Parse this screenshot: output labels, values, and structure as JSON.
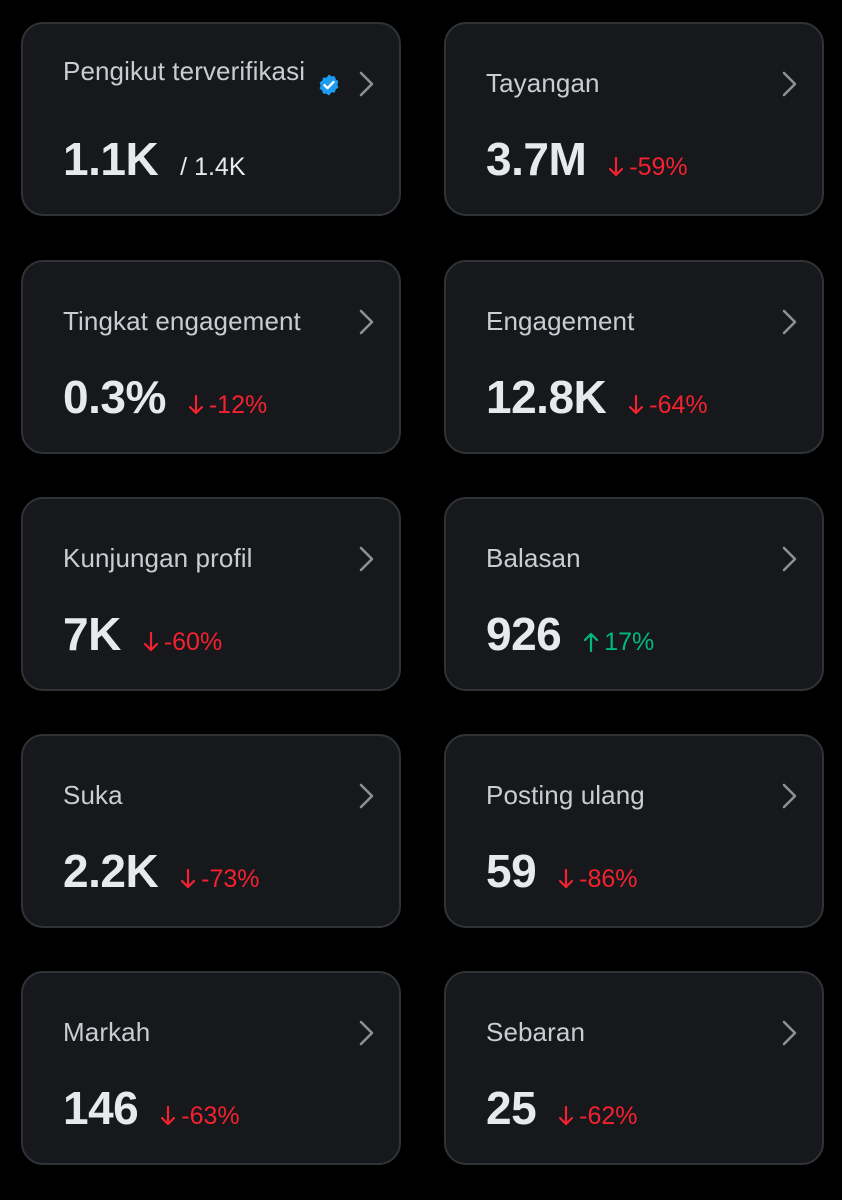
{
  "colors": {
    "background": "#000000",
    "card": "#16181c",
    "card_border": "#2f3336",
    "negative": "#f4212e",
    "positive": "#00ba7c",
    "verified": "#1d9bf0"
  },
  "cards": [
    {
      "label": "Pengikut terverifikasi",
      "value": "1.1K",
      "sub": "/ 1.4K",
      "icons": [
        "verified-badge-icon",
        "chevron-right-icon"
      ]
    },
    {
      "label": "Tayangan",
      "value": "3.7M",
      "change": "-59%",
      "direction": "down",
      "icons": [
        "arrow-down-icon",
        "chevron-right-icon"
      ]
    },
    {
      "label": "Tingkat engagement",
      "value": "0.3%",
      "change": "-12%",
      "direction": "down",
      "icons": [
        "arrow-down-icon",
        "chevron-right-icon"
      ]
    },
    {
      "label": "Engagement",
      "value": "12.8K",
      "change": "-64%",
      "direction": "down",
      "icons": [
        "arrow-down-icon",
        "chevron-right-icon"
      ]
    },
    {
      "label": "Kunjungan profil",
      "value": "7K",
      "change": "-60%",
      "direction": "down",
      "icons": [
        "arrow-down-icon",
        "chevron-right-icon"
      ]
    },
    {
      "label": "Balasan",
      "value": "926",
      "change": "17%",
      "direction": "up",
      "icons": [
        "arrow-up-icon",
        "chevron-right-icon"
      ]
    },
    {
      "label": "Suka",
      "value": "2.2K",
      "change": "-73%",
      "direction": "down",
      "icons": [
        "arrow-down-icon",
        "chevron-right-icon"
      ]
    },
    {
      "label": "Posting ulang",
      "value": "59",
      "change": "-86%",
      "direction": "down",
      "icons": [
        "arrow-down-icon",
        "chevron-right-icon"
      ]
    },
    {
      "label": "Markah",
      "value": "146",
      "change": "-63%",
      "direction": "down",
      "icons": [
        "arrow-down-icon",
        "chevron-right-icon"
      ]
    },
    {
      "label": "Sebaran",
      "value": "25",
      "change": "-62%",
      "direction": "down",
      "icons": [
        "arrow-down-icon",
        "chevron-right-icon"
      ]
    }
  ]
}
